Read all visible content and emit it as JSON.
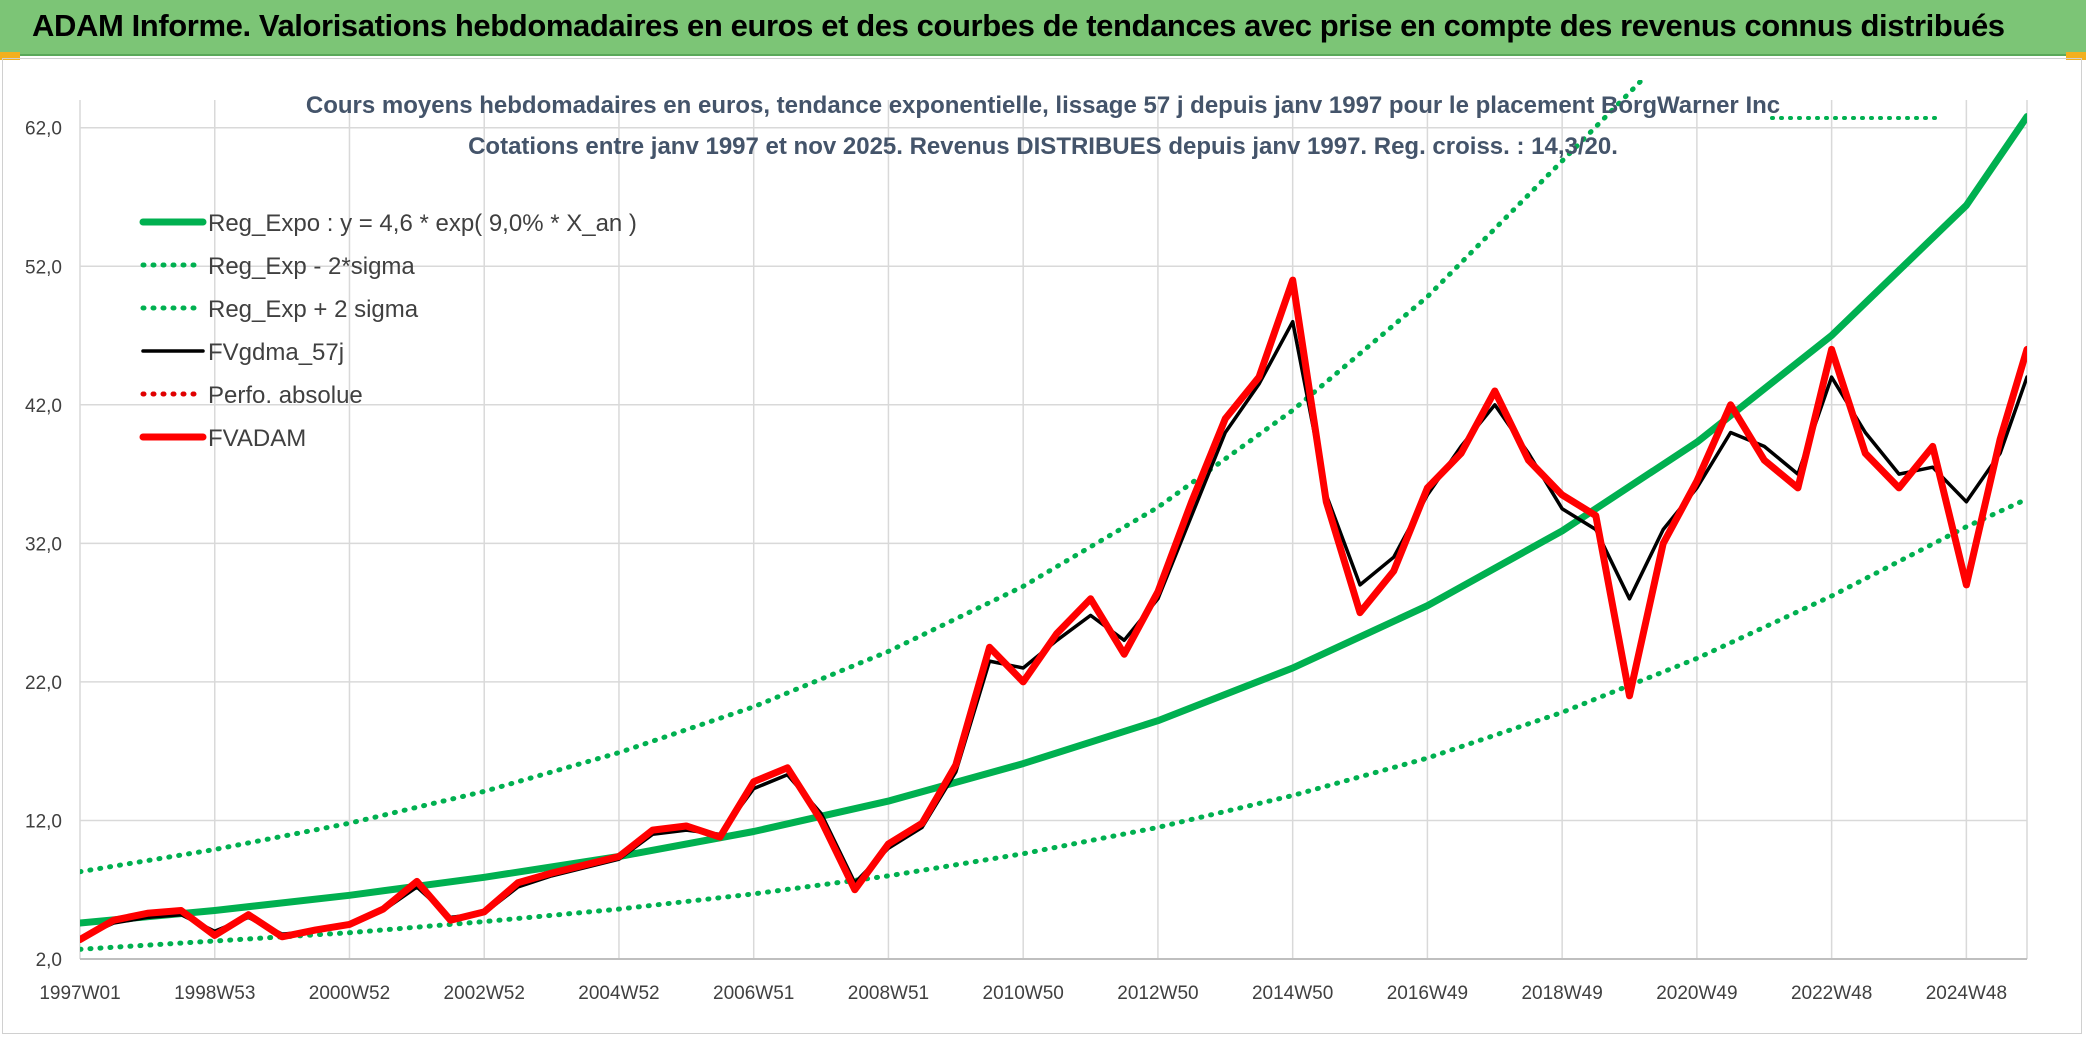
{
  "banner": {
    "title": "ADAM Informe. Valorisations hebdomadaires en euros et des courbes de tendances avec prise en compte des revenus connus distribués"
  },
  "chart_data": {
    "type": "line",
    "title_lines": [
      "Cours moyens hebdomadaires en euros, tendance exponentielle, lissage 57 j depuis janv 1997 pour le placement BorgWarner Inc",
      "Cotations entre janv 1997 et nov 2025. Revenus DISTRIBUES depuis janv 1997. Reg. croiss. : 14,3/20."
    ],
    "x_ticks": [
      "1997W01",
      "1998W53",
      "2000W52",
      "2002W52",
      "2004W52",
      "2006W51",
      "2008W51",
      "2010W50",
      "2012W50",
      "2014W50",
      "2016W49",
      "2018W49",
      "2020W49",
      "2022W48",
      "2024W48"
    ],
    "x_tick_years": [
      1997.0,
      1999.0,
      2001.0,
      2003.0,
      2005.0,
      2007.0,
      2009.0,
      2011.0,
      2013.0,
      2015.0,
      2017.0,
      2019.0,
      2021.0,
      2023.0,
      2025.0
    ],
    "xlim": [
      1997.0,
      2025.9
    ],
    "y_ticks": [
      "2,0",
      "12,0",
      "22,0",
      "32,0",
      "42,0",
      "52,0",
      "62,0"
    ],
    "y_tick_values": [
      2,
      12,
      22,
      32,
      42,
      52,
      62
    ],
    "ylim": [
      2,
      64
    ],
    "grid": true,
    "legend_position": "top-left",
    "legend": [
      {
        "label": "Reg_Expo : y = 4,6 * exp( 9,0% *  X_an )",
        "color": "#00b050",
        "style": "solid-thick"
      },
      {
        "label": "Reg_Exp - 2*sigma",
        "color": "#00b050",
        "style": "dotted"
      },
      {
        "label": "Reg_Exp + 2 sigma",
        "color": "#00b050",
        "style": "dotted"
      },
      {
        "label": "FVgdma_57j",
        "color": "#000000",
        "style": "solid"
      },
      {
        "label": "Perfo. absolue",
        "color": "#e00000",
        "style": "dotted"
      },
      {
        "label": "FVADAM",
        "color": "#ff0000",
        "style": "solid-thick"
      }
    ],
    "series": [
      {
        "name": "Reg_Expo : y = 4,6 * exp( 9,0% *  X_an )",
        "x": [
          1997.0,
          1999.0,
          2001.0,
          2003.0,
          2005.0,
          2007.0,
          2009.0,
          2011.0,
          2013.0,
          2015.0,
          2017.0,
          2019.0,
          2021.0,
          2023.0,
          2025.0,
          2025.9
        ],
        "y": [
          4.6,
          5.5,
          6.6,
          7.9,
          9.4,
          11.2,
          13.4,
          16.1,
          19.2,
          23.0,
          27.5,
          32.9,
          39.3,
          47.0,
          56.4,
          62.8
        ]
      },
      {
        "name": "Reg_Exp - 2*sigma",
        "x": [
          1997.0,
          1999.0,
          2001.0,
          2003.0,
          2005.0,
          2007.0,
          2009.0,
          2011.0,
          2013.0,
          2015.0,
          2017.0,
          2019.0,
          2021.0,
          2023.0,
          2025.0,
          2025.9
        ],
        "y": [
          2.7,
          3.3,
          3.9,
          4.7,
          5.6,
          6.7,
          8.0,
          9.6,
          11.5,
          13.8,
          16.5,
          19.8,
          23.7,
          28.2,
          33.2,
          35.2
        ]
      },
      {
        "name": "Reg_Exp + 2 sigma",
        "x": [
          1997.0,
          1999.0,
          2001.0,
          2003.0,
          2005.0,
          2007.0,
          2009.0,
          2011.0,
          2013.0,
          2015.0,
          2017.0,
          2019.0,
          2020.5
        ],
        "y": [
          8.3,
          9.9,
          11.8,
          14.1,
          16.9,
          20.2,
          24.2,
          28.9,
          34.6,
          41.6,
          49.8,
          59.6,
          67.0
        ]
      },
      {
        "name": "FVgdma_57j",
        "x": [
          1997.0,
          1997.5,
          1998.0,
          1998.5,
          1999.0,
          1999.5,
          2000.0,
          2000.5,
          2001.0,
          2001.5,
          2002.0,
          2002.5,
          2003.0,
          2003.5,
          2004.0,
          2004.5,
          2005.0,
          2005.5,
          2006.0,
          2006.5,
          2007.0,
          2007.5,
          2008.0,
          2008.5,
          2009.0,
          2009.5,
          2010.0,
          2010.5,
          2011.0,
          2011.5,
          2012.0,
          2012.5,
          2013.0,
          2013.5,
          2014.0,
          2014.5,
          2015.0,
          2015.5,
          2016.0,
          2016.5,
          2017.0,
          2017.5,
          2018.0,
          2018.5,
          2019.0,
          2019.5,
          2020.0,
          2020.5,
          2021.0,
          2021.5,
          2022.0,
          2022.5,
          2023.0,
          2023.5,
          2024.0,
          2024.5,
          2025.0,
          2025.5,
          2025.9
        ],
        "y": [
          3.5,
          4.6,
          5.0,
          5.2,
          4.0,
          5.0,
          3.8,
          4.0,
          4.4,
          5.5,
          7.2,
          5.0,
          5.3,
          7.2,
          8.0,
          8.6,
          9.2,
          11.0,
          11.3,
          11.0,
          14.3,
          15.3,
          12.5,
          7.5,
          10.0,
          11.5,
          15.5,
          23.5,
          23.0,
          25.0,
          26.8,
          25.0,
          28.0,
          34.0,
          40.0,
          43.5,
          48.0,
          35.5,
          29.0,
          31.0,
          35.5,
          39.0,
          42.0,
          38.5,
          34.5,
          33.0,
          28.0,
          33.0,
          36.0,
          40.0,
          39.0,
          37.0,
          44.0,
          40.0,
          37.0,
          37.5,
          35.0,
          38.5,
          44.0
        ]
      },
      {
        "name": "FVADAM",
        "x": [
          1997.0,
          1997.5,
          1998.0,
          1998.5,
          1999.0,
          1999.5,
          2000.0,
          2000.5,
          2001.0,
          2001.5,
          2002.0,
          2002.5,
          2003.0,
          2003.5,
          2004.0,
          2004.5,
          2005.0,
          2005.5,
          2006.0,
          2006.5,
          2007.0,
          2007.5,
          2008.0,
          2008.5,
          2009.0,
          2009.5,
          2010.0,
          2010.5,
          2011.0,
          2011.5,
          2012.0,
          2012.5,
          2013.0,
          2013.5,
          2014.0,
          2014.5,
          2015.0,
          2015.5,
          2016.0,
          2016.5,
          2017.0,
          2017.5,
          2018.0,
          2018.5,
          2019.0,
          2019.5,
          2020.0,
          2020.5,
          2021.0,
          2021.5,
          2022.0,
          2022.5,
          2023.0,
          2023.5,
          2024.0,
          2024.5,
          2025.0,
          2025.5,
          2025.9
        ],
        "y": [
          3.4,
          4.8,
          5.3,
          5.5,
          3.7,
          5.2,
          3.6,
          4.1,
          4.5,
          5.6,
          7.6,
          4.8,
          5.4,
          7.5,
          8.2,
          8.8,
          9.4,
          11.3,
          11.6,
          10.8,
          14.8,
          15.8,
          12.0,
          7.0,
          10.3,
          11.8,
          16.0,
          24.5,
          22.0,
          25.5,
          28.0,
          24.0,
          28.5,
          35.0,
          41.0,
          44.0,
          51.0,
          35.0,
          27.0,
          30.0,
          36.0,
          38.5,
          43.0,
          38.0,
          35.5,
          34.0,
          21.0,
          32.0,
          36.5,
          42.0,
          38.0,
          36.0,
          46.0,
          38.5,
          36.0,
          39.0,
          29.0,
          39.5,
          46.0
        ]
      }
    ]
  }
}
